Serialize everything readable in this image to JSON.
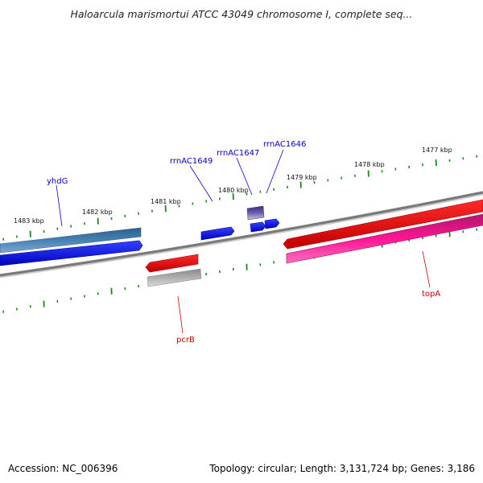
{
  "header": {
    "title": "Haloarcula marismortui ATCC 43049 chromosome I, complete seq..."
  },
  "footer": {
    "accession": "Accession: NC_006396",
    "summary": "Topology: circular; Length: 3,131,724 bp; Genes: 3,186"
  },
  "colors": {
    "backbone": "#7a7a7a",
    "tick": "#1a8a1a",
    "label_forward": "#0000cc",
    "label_reverse": "#cc0000"
  },
  "ticks": [
    {
      "label": "1483 kbp"
    },
    {
      "label": "1482 kbp"
    },
    {
      "label": "1481 kbp"
    },
    {
      "label": "1480 kbp"
    },
    {
      "label": "1479 kbp"
    },
    {
      "label": "1478 kbp"
    },
    {
      "label": "1477 kbp"
    }
  ],
  "features": [
    {
      "name": "yhdG",
      "strand": "forward",
      "color": "#0000ee"
    },
    {
      "name": "",
      "strand": "forward",
      "color": "#4682b4"
    },
    {
      "name": "",
      "strand": "forward",
      "color": "#0000ee"
    },
    {
      "name": "",
      "strand": "forward",
      "color": "#483d8b"
    },
    {
      "name": "",
      "strand": "forward",
      "color": "#0000ee"
    },
    {
      "name": "",
      "strand": "forward",
      "color": "#0000ee"
    },
    {
      "name": "",
      "strand": "forward",
      "color": "#ee0000"
    },
    {
      "name": "pcrB",
      "strand": "reverse",
      "color": "#ee0000"
    },
    {
      "name": "",
      "strand": "reverse",
      "color": "#b0b0b0"
    },
    {
      "name": "topA",
      "strand": "reverse",
      "color": "#ff1493"
    }
  ],
  "gene_labels": [
    {
      "text": "yhdG",
      "strand": "forward"
    },
    {
      "text": "rrnAC1649",
      "strand": "forward"
    },
    {
      "text": "rrnAC1647",
      "strand": "forward"
    },
    {
      "text": "rrnAC1646",
      "strand": "forward"
    },
    {
      "text": "pcrB",
      "strand": "reverse"
    },
    {
      "text": "topA",
      "strand": "reverse"
    }
  ]
}
